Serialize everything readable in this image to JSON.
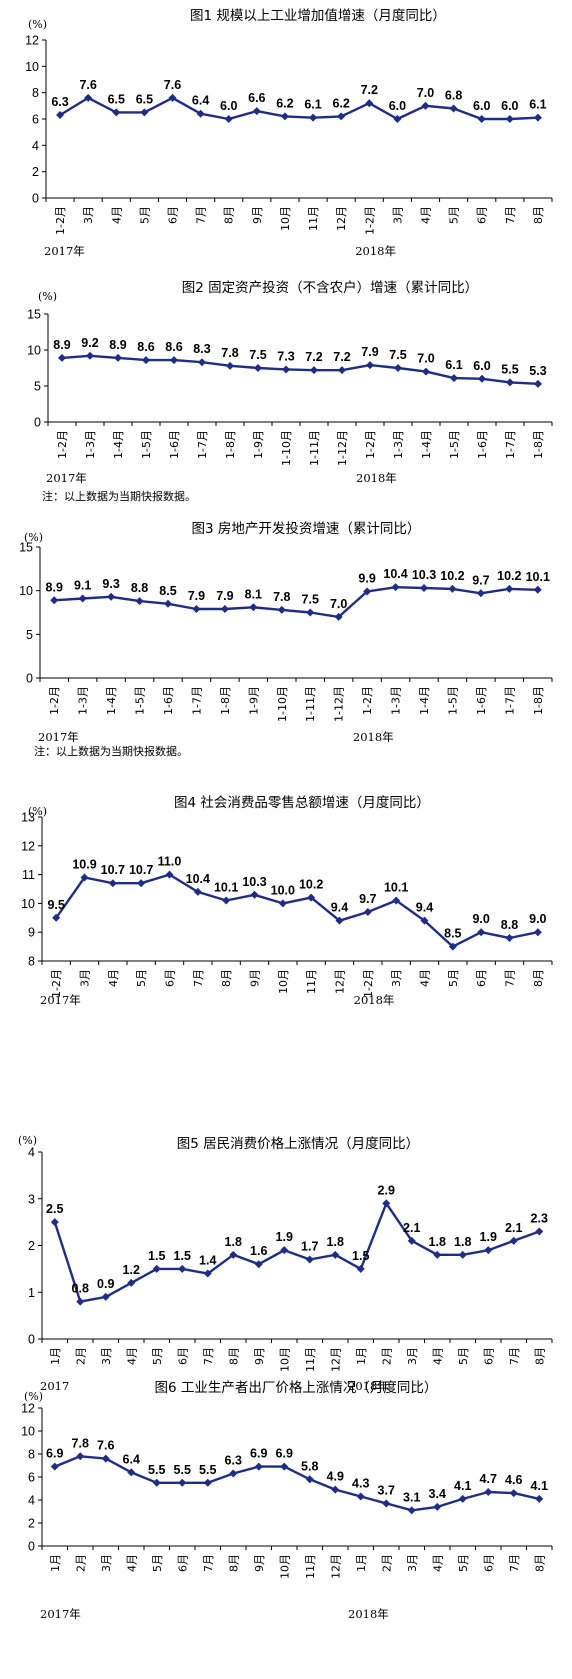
{
  "chart_data": [
    {
      "type": "line",
      "title": "图1   规模以上工业增加值增速（月度同比）",
      "unit": "(%)",
      "ylim": [
        0,
        12
      ],
      "yticks": [
        0,
        2,
        4,
        6,
        8,
        10,
        12
      ],
      "categories": [
        "1-2月",
        "3月",
        "4月",
        "5月",
        "6月",
        "7月",
        "8月",
        "9月",
        "10月",
        "11月",
        "12月",
        "1-2月",
        "3月",
        "4月",
        "5月",
        "6月",
        "7月",
        "8月"
      ],
      "values": [
        6.3,
        7.6,
        6.5,
        6.5,
        7.6,
        6.4,
        6.0,
        6.6,
        6.2,
        6.1,
        6.2,
        7.2,
        6.0,
        7.0,
        6.8,
        6.0,
        6.0,
        6.1
      ],
      "labels": [
        "6.3",
        "7.6",
        "6.5",
        "6.5",
        "7.6",
        "6.4",
        "6.0",
        "6.6",
        "6.2",
        "6.1",
        "6.2",
        "7.2",
        "6.0",
        "7.0",
        "6.8",
        "6.0",
        "6.0",
        "6.1"
      ],
      "years": [
        {
          "text": "2017年",
          "at": 0
        },
        {
          "text": "2018年",
          "at": 11
        }
      ],
      "note": "",
      "line_color": "#1f2d86"
    },
    {
      "type": "line",
      "title": "图2   固定资产投资（不含农户）增速（累计同比）",
      "unit": "(%)",
      "ylim": [
        0,
        15
      ],
      "yticks": [
        0,
        5,
        10,
        15
      ],
      "categories": [
        "1-2月",
        "1-3月",
        "1-4月",
        "1-5月",
        "1-6月",
        "1-7月",
        "1-8月",
        "1-9月",
        "1-10月",
        "1-11月",
        "1-12月",
        "1-2月",
        "1-3月",
        "1-4月",
        "1-5月",
        "1-6月",
        "1-7月",
        "1-8月"
      ],
      "values": [
        8.9,
        9.2,
        8.9,
        8.6,
        8.6,
        8.3,
        7.8,
        7.5,
        7.3,
        7.2,
        7.2,
        7.9,
        7.5,
        7.0,
        6.1,
        6.0,
        5.5,
        5.3
      ],
      "labels": [
        "8.9",
        "9.2",
        "8.9",
        "8.6",
        "8.6",
        "8.3",
        "7.8",
        "7.5",
        "7.3",
        "7.2",
        "7.2",
        "7.9",
        "7.5",
        "7.0",
        "6.1",
        "6.0",
        "5.5",
        "5.3"
      ],
      "years": [
        {
          "text": "2017年",
          "at": 0
        },
        {
          "text": "2018年",
          "at": 11
        }
      ],
      "note": "注：以上数据为当期快报数据。",
      "line_color": "#1f2d86"
    },
    {
      "type": "line",
      "title": "图3   房地产开发投资增速（累计同比）",
      "unit": "(%)",
      "ylim": [
        0,
        15
      ],
      "yticks": [
        0,
        5,
        10,
        15
      ],
      "categories": [
        "1-2月",
        "1-3月",
        "1-4月",
        "1-5月",
        "1-6月",
        "1-7月",
        "1-8月",
        "1-9月",
        "1-10月",
        "1-11月",
        "1-12月",
        "1-2月",
        "1-3月",
        "1-4月",
        "1-5月",
        "1-6月",
        "1-7月",
        "1-8月"
      ],
      "values": [
        8.9,
        9.1,
        9.3,
        8.8,
        8.5,
        7.9,
        7.9,
        8.1,
        7.8,
        7.5,
        7.0,
        9.9,
        10.4,
        10.3,
        10.2,
        9.7,
        10.2,
        10.1
      ],
      "labels": [
        "8.9",
        "9.1",
        "9.3",
        "8.8",
        "8.5",
        "7.9",
        "7.9",
        "8.1",
        "7.8",
        "7.5",
        "7.0",
        "9.9",
        "10.4",
        "10.3",
        "10.2",
        "9.7",
        "10.2",
        "10.1"
      ],
      "years": [
        {
          "text": "2017年",
          "at": 0
        },
        {
          "text": "2018年",
          "at": 11
        }
      ],
      "note": "注：以上数据为当期快报数据。",
      "line_color": "#1f2d86"
    },
    {
      "type": "line",
      "title": "图4   社会消费品零售总额增速（月度同比）",
      "unit": "(%)",
      "ylim": [
        8,
        13
      ],
      "yticks": [
        8,
        9,
        10,
        11,
        12,
        13
      ],
      "categories": [
        "1-2月",
        "3月",
        "4月",
        "5月",
        "6月",
        "7月",
        "8月",
        "9月",
        "10月",
        "11月",
        "12月",
        "1-2月",
        "3月",
        "4月",
        "5月",
        "6月",
        "7月",
        "8月"
      ],
      "values": [
        9.5,
        10.9,
        10.7,
        10.7,
        11.0,
        10.4,
        10.1,
        10.3,
        10.0,
        10.2,
        9.4,
        9.7,
        10.1,
        9.4,
        8.5,
        9.0,
        8.8,
        9.0
      ],
      "labels": [
        "9.5",
        "10.9",
        "10.7",
        "10.7",
        "11.0",
        "10.4",
        "10.1",
        "10.3",
        "10.0",
        "10.2",
        "9.4",
        "9.7",
        "10.1",
        "9.4",
        "8.5",
        "9.0",
        "8.8",
        "9.0"
      ],
      "years": [
        {
          "text": "2017年",
          "at": 0
        },
        {
          "text": "2018年",
          "at": 11
        }
      ],
      "note": "",
      "line_color": "#1f2d86"
    },
    {
      "type": "line",
      "title": "图5   居民消费价格上涨情况（月度同比）",
      "unit": "(%)",
      "ylim": [
        0,
        4
      ],
      "yticks": [
        0,
        1,
        2,
        3,
        4
      ],
      "categories": [
        "1月",
        "2月",
        "3月",
        "4月",
        "5月",
        "6月",
        "7月",
        "8月",
        "9月",
        "10月",
        "11月",
        "12月",
        "1月",
        "2月",
        "3月",
        "4月",
        "5月",
        "6月",
        "7月",
        "8月"
      ],
      "values": [
        2.5,
        0.8,
        0.9,
        1.2,
        1.5,
        1.5,
        1.4,
        1.8,
        1.6,
        1.9,
        1.7,
        1.8,
        1.5,
        2.9,
        2.1,
        1.8,
        1.8,
        1.9,
        2.1,
        2.3
      ],
      "labels": [
        "2.5",
        "0.8",
        "0.9",
        "1.2",
        "1.5",
        "1.5",
        "1.4",
        "1.8",
        "1.6",
        "1.9",
        "1.7",
        "1.8",
        "1.5",
        "2.9",
        "2.1",
        "1.8",
        "1.8",
        "1.9",
        "2.1",
        "2.3"
      ],
      "years": [
        {
          "text": "2017",
          "at": 0
        },
        {
          "text": "2018年",
          "at": 12
        }
      ],
      "note": "",
      "line_color": "#1f2d86"
    },
    {
      "type": "line",
      "title": "图6  工业生产者出厂价格上涨情况（月度同比）",
      "unit": "(%)",
      "ylim": [
        0,
        12
      ],
      "yticks": [
        0,
        2,
        4,
        6,
        8,
        10,
        12
      ],
      "categories": [
        "1月",
        "2月",
        "3月",
        "4月",
        "5月",
        "6月",
        "7月",
        "8月",
        "9月",
        "10月",
        "11月",
        "12月",
        "1月",
        "2月",
        "3月",
        "4月",
        "5月",
        "6月",
        "7月",
        "8月"
      ],
      "values": [
        6.9,
        7.8,
        7.6,
        6.4,
        5.5,
        5.5,
        5.5,
        6.3,
        6.9,
        6.9,
        5.8,
        4.9,
        4.3,
        3.7,
        3.1,
        3.4,
        4.1,
        4.7,
        4.6,
        4.1
      ],
      "labels": [
        "6.9",
        "7.8",
        "7.6",
        "6.4",
        "5.5",
        "5.5",
        "5.5",
        "6.3",
        "6.9",
        "6.9",
        "5.8",
        "4.9",
        "4.3",
        "3.7",
        "3.1",
        "3.4",
        "4.1",
        "4.7",
        "4.6",
        "4.1"
      ],
      "years": [
        {
          "text": "2017年",
          "at": 0
        },
        {
          "text": "2018年",
          "at": 12
        }
      ],
      "note": "",
      "line_color": "#1f2d86"
    }
  ]
}
